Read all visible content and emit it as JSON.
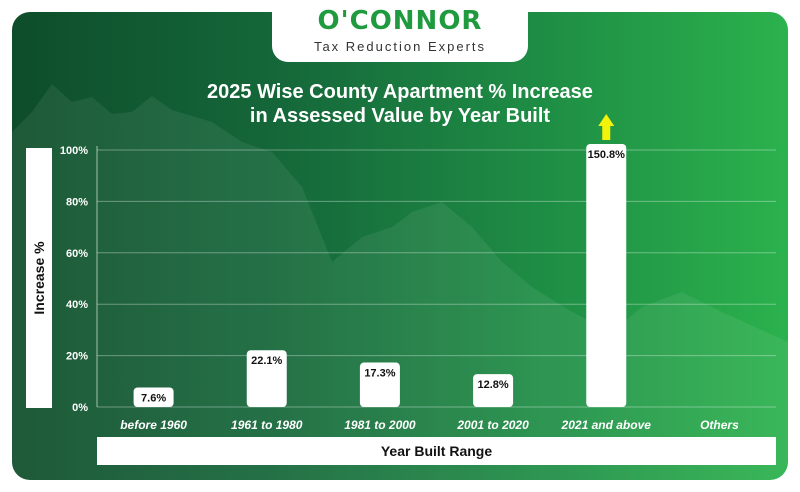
{
  "brand": {
    "name": "O'CONNOR",
    "tagline": "Tax Reduction Experts"
  },
  "chart_data": {
    "type": "bar",
    "title": "2025 Wise County Apartment % Increase in Assessed Value by Year Built",
    "title_lines": [
      "2025 Wise County Apartment % Increase",
      "in Assessed Value by Year Built"
    ],
    "xlabel": "Year Built Range",
    "ylabel": "Increase %",
    "categories": [
      "before 1960",
      "1961 to 1980",
      "1981 to 2000",
      "2001 to 2020",
      "2021 and above",
      "Others"
    ],
    "values": [
      7.6,
      22.1,
      17.3,
      12.8,
      150.8,
      null
    ],
    "value_labels": [
      "7.6%",
      "22.1%",
      "17.3%",
      "12.8%",
      "150.8%",
      ""
    ],
    "yticks": [
      0,
      20,
      40,
      60,
      80,
      100
    ],
    "ytick_labels": [
      "0%",
      "20%",
      "40%",
      "60%",
      "80%",
      "100%"
    ],
    "ylim": [
      0,
      100
    ],
    "grid": true,
    "clipped_bar_indicator": "up-arrow",
    "colors": {
      "bar": "#ffffff",
      "arrow": "#f2f20a",
      "text": "#ffffff",
      "label_text": "#111111"
    }
  }
}
